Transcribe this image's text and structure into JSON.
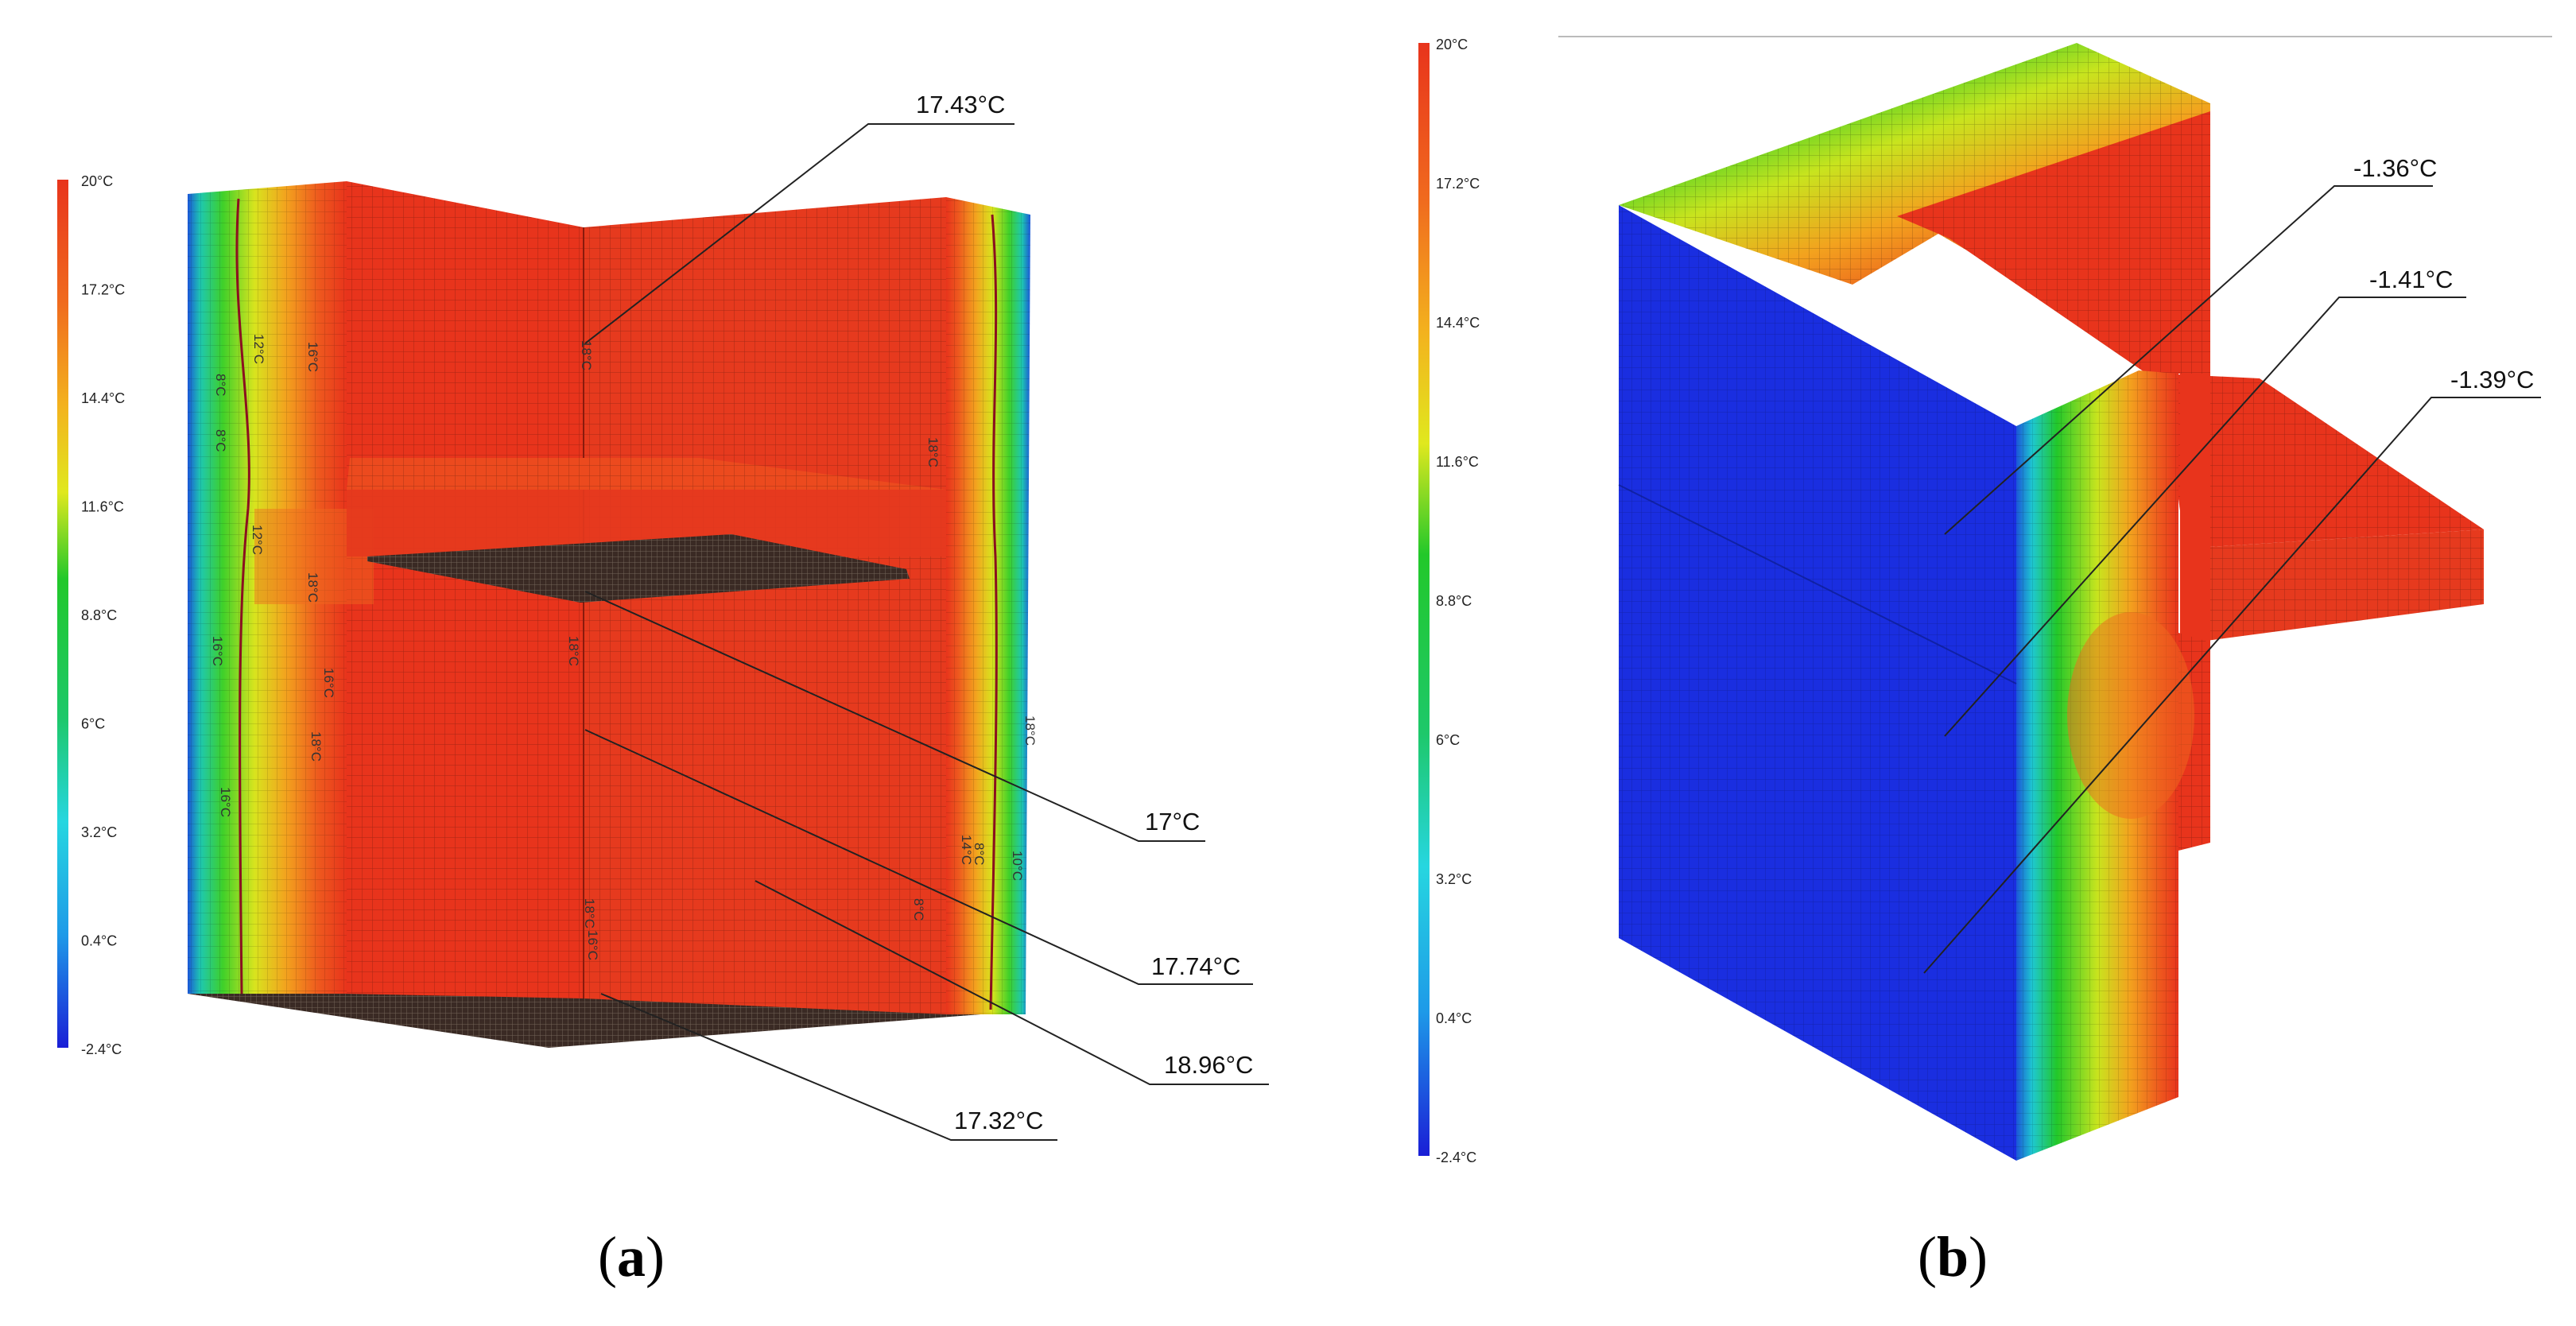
{
  "colors": {
    "hot": "#e8341c",
    "hot_dark": "#c72812",
    "orange": "#f39a1e",
    "yellow": "#f2e21e",
    "green": "#1ec82a",
    "cyan": "#28d6e8",
    "blue": "#1b3fd8",
    "deep_blue": "#1a1ed6"
  },
  "panel_a": {
    "caption_open": "(",
    "caption_letter": "a",
    "caption_close": ")",
    "legend_ticks": [
      "20°C",
      "17.2°C",
      "14.4°C",
      "11.6°C",
      "8.8°C",
      "6°C",
      "3.2°C",
      "0.4°C",
      "-2.4°C"
    ],
    "callouts": [
      "17.43°C",
      "17°C",
      "17.74°C",
      "18.96°C",
      "17.32°C"
    ],
    "isotherm_labels": [
      "16°C",
      "18°C",
      "18°C",
      "16°C",
      "18°C",
      "16°C",
      "16°C",
      "12°C",
      "8°C",
      "12°C",
      "8°C",
      "18°C",
      "18°C",
      "16°C",
      "18°C",
      "14°C",
      "8°C",
      "18°C",
      "10°C",
      "8°C"
    ]
  },
  "panel_b": {
    "caption_open": "(",
    "caption_letter": "b",
    "caption_close": ")",
    "legend_ticks": [
      "20°C",
      "17.2°C",
      "14.4°C",
      "11.6°C",
      "8.8°C",
      "6°C",
      "3.2°C",
      "0.4°C",
      "-2.4°C"
    ],
    "callouts": [
      "-1.36°C",
      "-1.41°C",
      "-1.39°C"
    ]
  }
}
